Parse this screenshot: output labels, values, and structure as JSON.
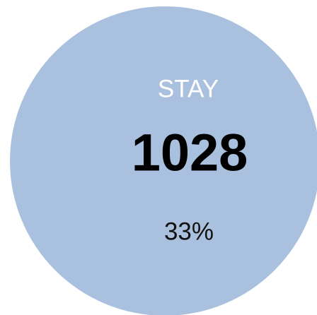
{
  "label": "STAY",
  "value": "1028",
  "percent": "33%"
}
